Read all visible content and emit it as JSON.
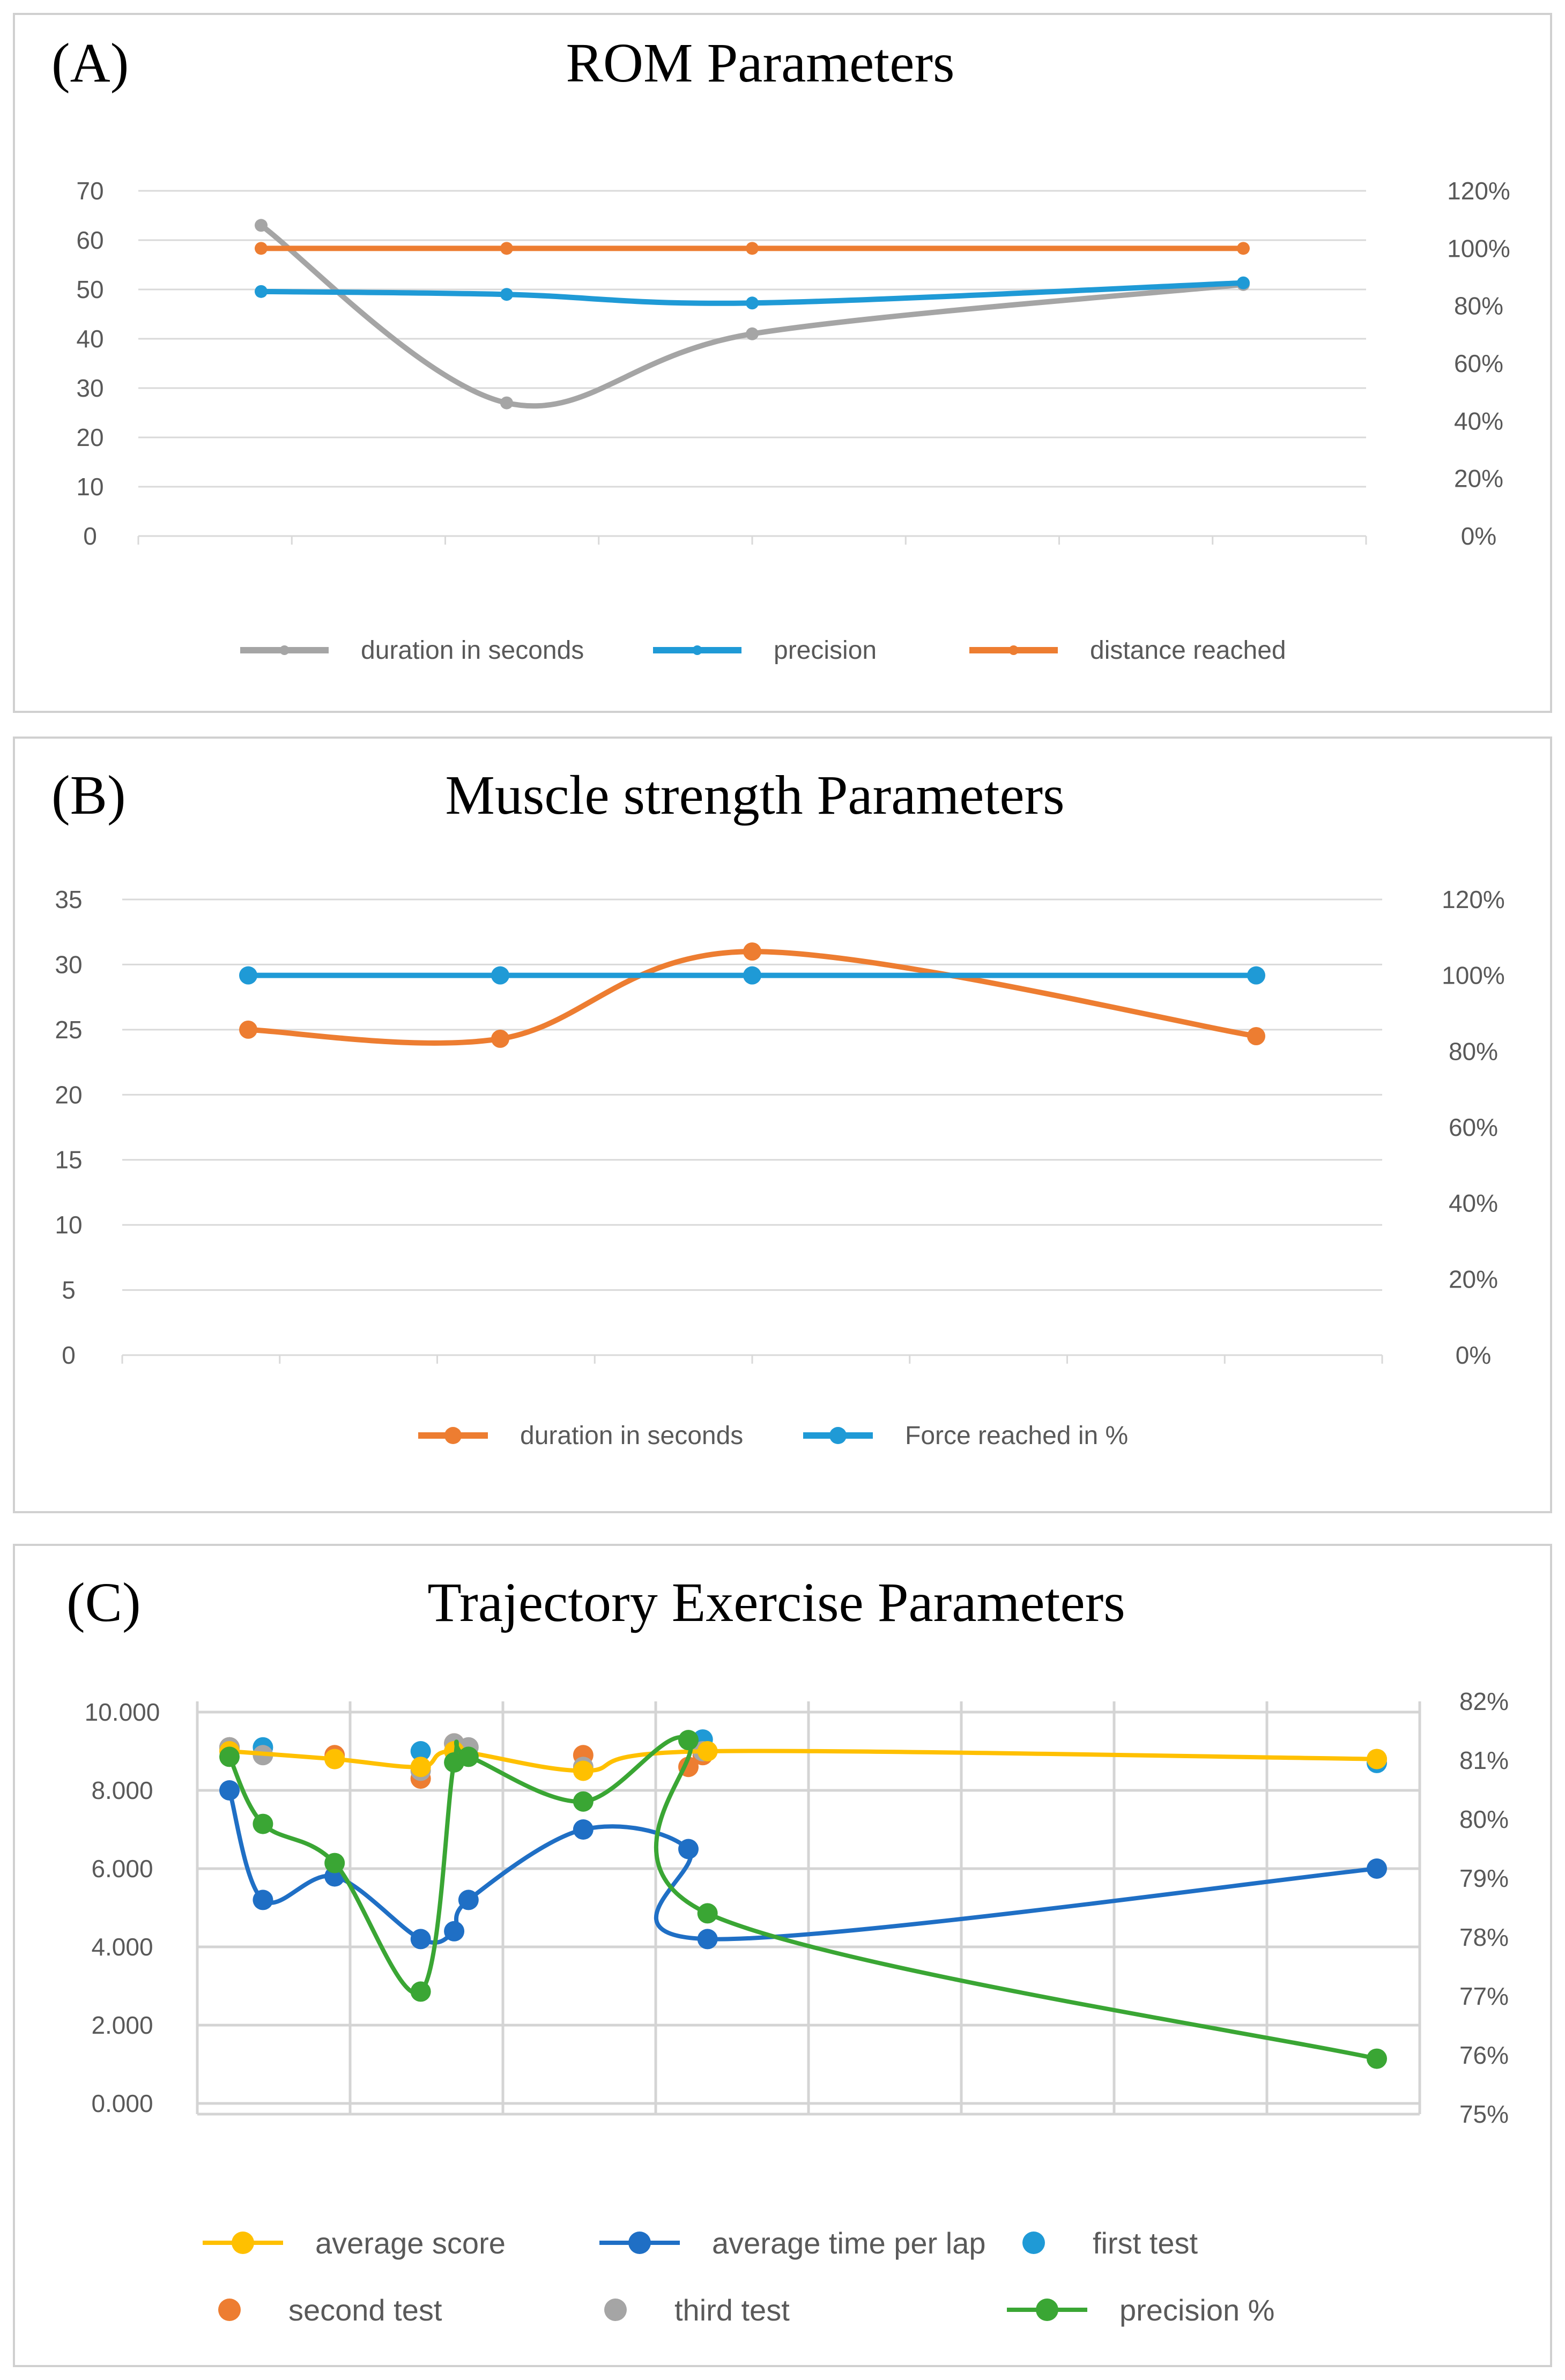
{
  "chart_data": [
    {
      "type": "line",
      "panel_label": "(A)",
      "title": "ROM Parameters",
      "x": [
        1,
        2,
        3,
        4,
        5
      ],
      "y_left_ticks": [
        "70",
        "60",
        "50",
        "40",
        "30",
        "20",
        "10",
        "0"
      ],
      "y_right_ticks": [
        "120%",
        "100%",
        "80%",
        "60%",
        "40%",
        "20%",
        "0%"
      ],
      "ylim_left": [
        0,
        70
      ],
      "ylim_right": [
        0,
        120
      ],
      "series": [
        {
          "name": "duration in seconds",
          "axis": "left",
          "color": "#a5a5a5",
          "values": [
            63,
            27,
            41,
            null,
            51
          ]
        },
        {
          "name": "precision",
          "axis": "right",
          "color": "#1f9ad6",
          "values": [
            85,
            84,
            81,
            null,
            88
          ]
        },
        {
          "name": "distance reached",
          "axis": "right",
          "color": "#ed7d31",
          "values": [
            100,
            100,
            100,
            null,
            100
          ]
        }
      ],
      "legend": [
        "duration in seconds",
        "precision",
        "distance reached"
      ]
    },
    {
      "type": "line",
      "panel_label": "(B)",
      "title": "Muscle strength Parameters",
      "x": [
        1,
        2,
        3,
        4,
        5
      ],
      "y_left_ticks": [
        "35",
        "30",
        "25",
        "20",
        "15",
        "10",
        "5",
        "0"
      ],
      "y_right_ticks": [
        "120%",
        "100%",
        "80%",
        "60%",
        "40%",
        "20%",
        "0%"
      ],
      "ylim_left": [
        0,
        35
      ],
      "ylim_right": [
        0,
        120
      ],
      "series": [
        {
          "name": "duration in seconds",
          "axis": "left",
          "color": "#ed7d31",
          "values": [
            25,
            24.3,
            31,
            null,
            24.5
          ]
        },
        {
          "name": "Force reached in %",
          "axis": "right",
          "color": "#1f9ad6",
          "values": [
            100,
            100,
            100,
            null,
            100
          ]
        }
      ],
      "legend": [
        "duration in seconds",
        "Force reached in %"
      ]
    },
    {
      "type": "line",
      "panel_label": "(C)",
      "title": "Trajectory Exercise Parameters",
      "y_left_ticks": [
        "10.000",
        "8.000",
        "6.000",
        "4.000",
        "2.000",
        "0.000"
      ],
      "y_right_ticks": [
        "82%",
        "81%",
        "80%",
        "79%",
        "78%",
        "77%",
        "76%",
        "75%"
      ],
      "ylim_left": [
        0,
        10
      ],
      "ylim_right": [
        75,
        82
      ],
      "x": [
        1,
        1.7,
        3.2,
        5,
        5.7,
        6,
        8.4,
        10.6,
        11,
        25
      ],
      "series": [
        {
          "name": "average score",
          "axis": "left",
          "color": "#ffc000",
          "values": [
            9.0,
            null,
            8.8,
            8.6,
            9.0,
            null,
            8.5,
            null,
            9.0,
            8.8
          ]
        },
        {
          "name": "average time per lap",
          "axis": "left",
          "color": "#1f6fc5",
          "values": [
            8.0,
            5.2,
            5.8,
            4.2,
            4.4,
            5.2,
            7.0,
            6.5,
            4.2,
            6.0
          ]
        },
        {
          "name": "precision %",
          "axis": "right",
          "color": "#3aa634",
          "values": [
            81.2,
            80.0,
            79.3,
            77.0,
            81.1,
            81.2,
            80.4,
            81.5,
            78.4,
            75.8
          ]
        }
      ],
      "scatter": [
        {
          "name": "first test",
          "color": "#1f9ad6",
          "points": [
            [
              1,
              9.1
            ],
            [
              1.7,
              9.1
            ],
            [
              5,
              9.0
            ],
            [
              10.9,
              9.3
            ],
            [
              25,
              8.7
            ]
          ]
        },
        {
          "name": "second test",
          "color": "#ed7d31",
          "points": [
            [
              1,
              9.1
            ],
            [
              3.2,
              8.9
            ],
            [
              5,
              8.3
            ],
            [
              5.7,
              9.2
            ],
            [
              8.4,
              8.9
            ],
            [
              10.6,
              8.6
            ],
            [
              10.9,
              8.9
            ]
          ]
        },
        {
          "name": "third test",
          "color": "#a5a5a5",
          "points": [
            [
              1,
              9.1
            ],
            [
              1.7,
              8.9
            ],
            [
              3.2,
              8.8
            ],
            [
              5,
              8.5
            ],
            [
              5.7,
              9.2
            ],
            [
              6,
              9.1
            ],
            [
              8.4,
              8.6
            ],
            [
              10.9,
              9.0
            ],
            [
              25,
              8.8
            ]
          ]
        }
      ],
      "legend": [
        "average score",
        "average time per lap",
        "first test",
        "second test",
        "third test",
        "precision %"
      ]
    }
  ]
}
